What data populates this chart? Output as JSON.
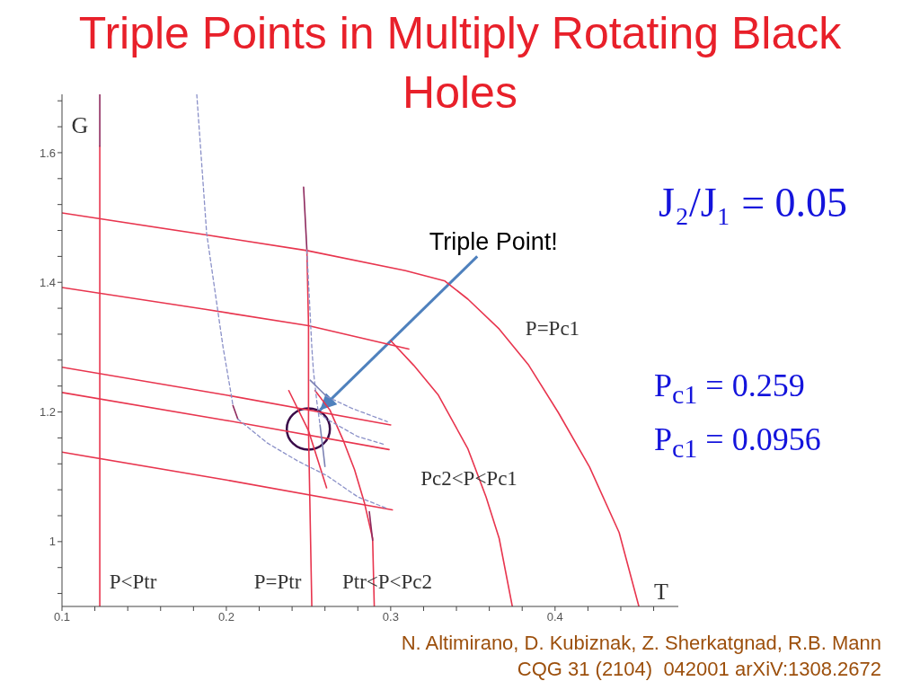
{
  "chart_data": {
    "type": "line",
    "title": "Triple Points in Multiply Rotating Black Holes",
    "xlabel": "T",
    "ylabel": "G",
    "xlim": [
      0.1,
      0.475
    ],
    "ylim": [
      0.9,
      1.69
    ],
    "xticks": [
      0.1,
      {
        "value": 0.12,
        "label": null
      },
      {
        "value": 0.14,
        "label": null
      },
      {
        "value": 0.16,
        "label": null
      },
      {
        "value": 0.18,
        "label": null
      },
      0.2,
      {
        "value": 0.22,
        "label": null
      },
      {
        "value": 0.24,
        "label": null
      },
      {
        "value": 0.26,
        "label": null
      },
      {
        "value": 0.28,
        "label": null
      },
      0.3,
      {
        "value": 0.32,
        "label": null
      },
      {
        "value": 0.34,
        "label": null
      },
      {
        "value": 0.36,
        "label": null
      },
      {
        "value": 0.38,
        "label": null
      },
      0.4,
      {
        "value": 0.42,
        "label": null
      },
      {
        "value": 0.44,
        "label": null
      },
      {
        "value": 0.46,
        "label": null
      }
    ],
    "yticks": [
      {
        "value": 0.92,
        "label": null
      },
      {
        "value": 0.96,
        "label": null
      },
      1,
      {
        "value": 1.04,
        "label": null
      },
      {
        "value": 1.08,
        "label": null
      },
      {
        "value": 1.12,
        "label": null
      },
      {
        "value": 1.16,
        "label": null
      },
      1.2,
      {
        "value": 1.24,
        "label": null
      },
      {
        "value": 1.28,
        "label": null
      },
      {
        "value": 1.32,
        "label": null
      },
      {
        "value": 1.36,
        "label": null
      },
      1.4,
      {
        "value": 1.44,
        "label": null
      },
      {
        "value": 1.48,
        "label": null
      },
      {
        "value": 1.52,
        "label": null
      },
      {
        "value": 1.56,
        "label": null
      },
      1.6,
      {
        "value": 1.64,
        "label": null
      },
      {
        "value": 1.68,
        "label": null
      }
    ],
    "marker": "none",
    "series": [
      {
        "color": "#e8354e",
        "x": [
          0.123,
          0.123
        ],
        "values": [
          1.61,
          0.9
        ]
      },
      {
        "color": "#8e2a5e",
        "x": [
          0.123,
          0.123
        ],
        "values": [
          1.69,
          1.61
        ]
      },
      {
        "color": "#e8354e",
        "x": [
          0.1,
          0.188,
          0.249,
          0.309,
          0.333,
          0.347,
          0.366,
          0.384,
          0.402,
          0.421,
          0.439,
          0.451
        ],
        "values": [
          1.507,
          1.473,
          1.449,
          1.418,
          1.402,
          1.374,
          1.328,
          1.272,
          1.199,
          1.115,
          1.014,
          0.9
        ]
      },
      {
        "color": "#e8354e",
        "x": [
          0.1,
          0.188,
          0.25,
          0.311
        ],
        "values": [
          1.392,
          1.358,
          1.333,
          1.297
        ]
      },
      {
        "color": "#e8354e",
        "x": [
          0.3,
          0.314,
          0.329,
          0.347,
          0.358,
          0.366,
          0.374
        ],
        "values": [
          1.31,
          1.272,
          1.226,
          1.143,
          1.069,
          1.005,
          0.9
        ]
      },
      {
        "color": "#e8354e",
        "x": [
          0.1,
          0.2,
          0.3
        ],
        "values": [
          1.269,
          1.226,
          1.18
        ]
      },
      {
        "color": "#e8354e",
        "x": [
          0.1,
          0.2,
          0.299
        ],
        "values": [
          1.23,
          1.187,
          1.142
        ]
      },
      {
        "color": "#e8354e",
        "x": [
          0.1,
          0.2,
          0.301
        ],
        "values": [
          1.138,
          1.095,
          1.049
        ]
      },
      {
        "color": "#8e2a5e",
        "x": [
          0.247,
          0.249
        ],
        "values": [
          1.547,
          1.45
        ]
      },
      {
        "color": "#e8354e",
        "x": [
          0.249,
          0.25,
          0.25,
          0.252
        ],
        "values": [
          1.45,
          1.333,
          1.171,
          0.9
        ]
      },
      {
        "color": "#e8354e",
        "x": [
          0.254,
          0.263,
          0.271,
          0.278,
          0.284,
          0.289,
          0.29
        ],
        "values": [
          1.233,
          1.203,
          1.157,
          1.111,
          1.06,
          1.005,
          0.9
        ]
      },
      {
        "color": "#e8354e",
        "x": [
          0.238,
          0.25,
          0.261
        ],
        "values": [
          1.233,
          1.171,
          1.083
        ]
      },
      {
        "color": "#8a90c8",
        "line_style": "dashed",
        "x": [
          0.182,
          0.188,
          0.198,
          0.203,
          0.204
        ],
        "values": [
          1.69,
          1.476,
          1.3,
          1.226,
          1.21
        ]
      },
      {
        "color": "#8e2a5e",
        "x": [
          0.204,
          0.207
        ],
        "values": [
          1.21,
          1.189
        ]
      },
      {
        "color": "#8a90c8",
        "line_style": "dashed",
        "x": [
          0.207,
          0.225,
          0.243,
          0.261,
          0.28,
          0.298
        ],
        "values": [
          1.189,
          1.152,
          1.125,
          1.102,
          1.069,
          1.051
        ]
      },
      {
        "color": "#8a90c8",
        "line_style": "dashed",
        "x": [
          0.249,
          0.252,
          0.253,
          0.255,
          0.257
        ],
        "values": [
          1.45,
          1.3,
          1.263,
          1.217,
          1.18
        ]
      },
      {
        "color": "#7c82b4",
        "x": [
          0.257,
          0.259,
          0.26
        ],
        "values": [
          1.18,
          1.138,
          1.116
        ]
      },
      {
        "color": "#7c82b4",
        "x": [
          0.251,
          0.261
        ],
        "values": [
          1.249,
          1.224
        ]
      },
      {
        "color": "#8a90c8",
        "line_style": "dashed",
        "x": [
          0.261,
          0.276,
          0.298
        ],
        "values": [
          1.224,
          1.206,
          1.185
        ]
      },
      {
        "color": "#8a90c8",
        "line_style": "dashed",
        "x": [
          0.256,
          0.261,
          0.28,
          0.296
        ],
        "values": [
          1.199,
          1.189,
          1.162,
          1.15
        ]
      },
      {
        "color": "#8e2a5e",
        "x": [
          0.287,
          0.289
        ],
        "values": [
          1.046,
          1.002
        ]
      }
    ],
    "annotations": [
      "J₂/J₁ = 0.05",
      "P$_{c1}$ = 0.259",
      "P$_{c1}$ = 0.0956",
      {
        "text": "Triple Point!",
        "x": 0.257,
        "y": 1.203
      },
      "P<Ptr",
      "P=Ptr",
      "Ptr<P<Pc2",
      "Pc2<P<Pc1",
      "P=Pc1",
      "N. Altimirano, D. Kubiznak, Z. Sherkatgnad, R.B. Mann",
      "CQG 31 (2104)  042001 arXiV:1308.2672"
    ]
  }
}
